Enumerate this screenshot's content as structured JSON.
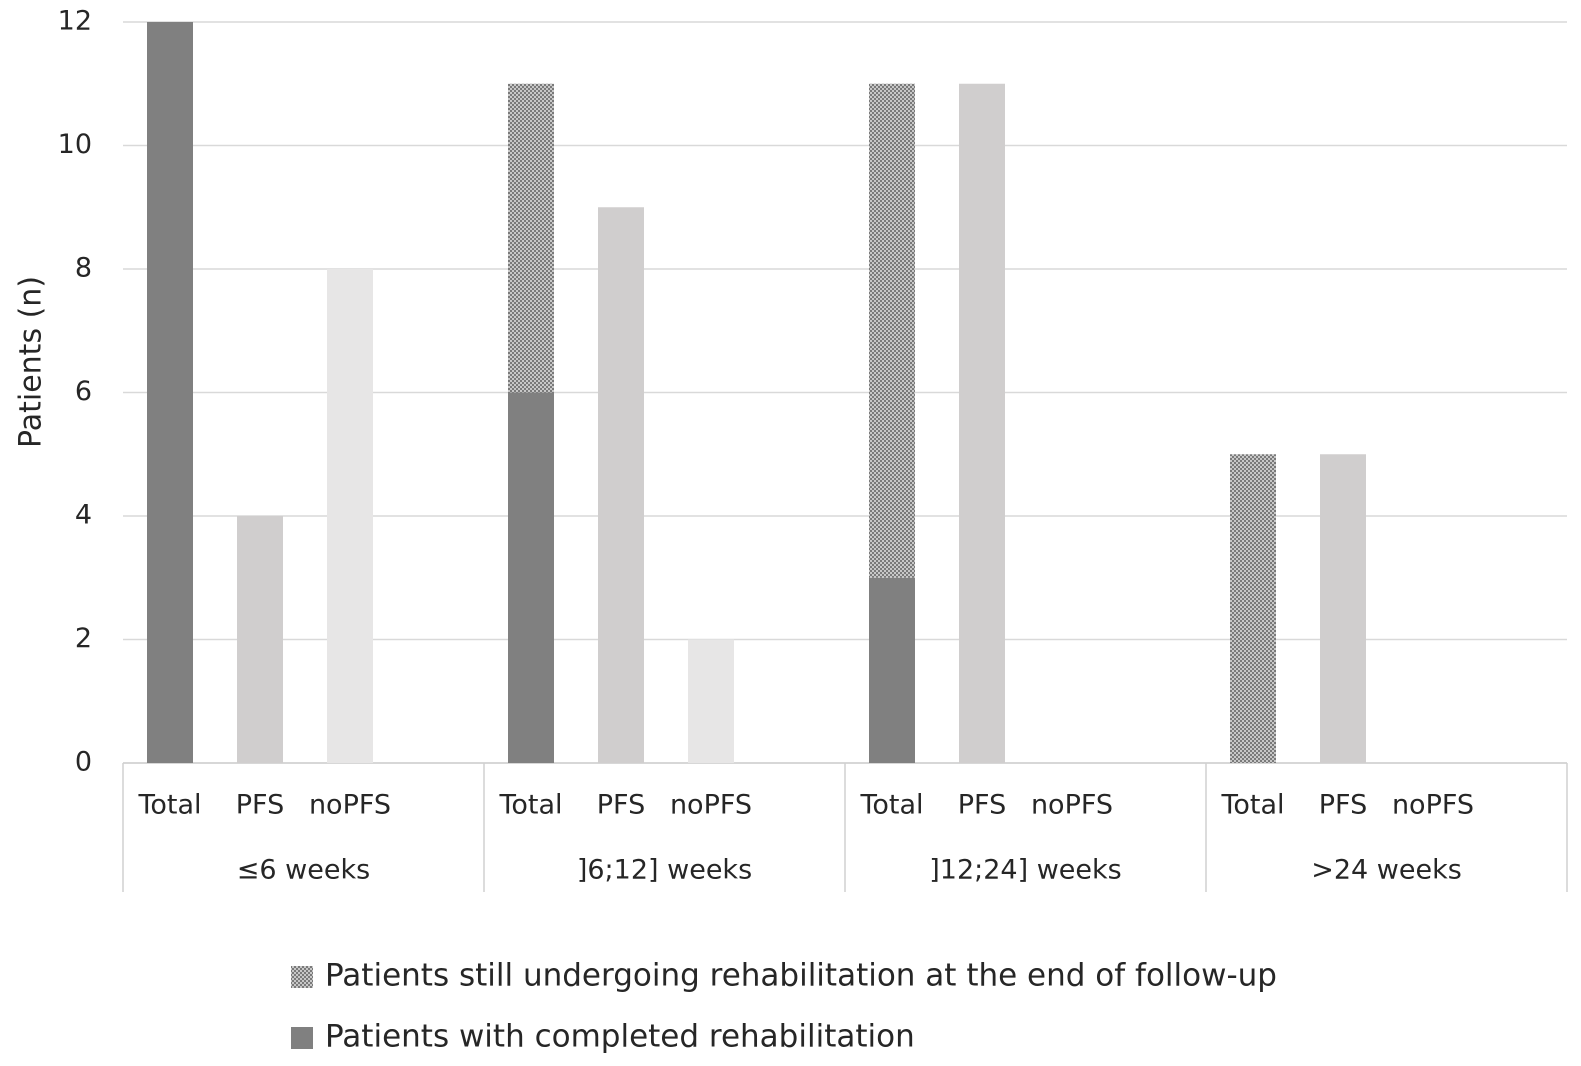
{
  "chart_data": {
    "type": "bar",
    "stacked": true,
    "y_label": "Patients (n)",
    "categories": [
      "Total",
      "PFS",
      "noPFS",
      "Total",
      "PFS",
      "noPFS",
      "Total",
      "PFS",
      "noPFS",
      "Total",
      "PFS",
      "noPFS"
    ],
    "groups": [
      "≤6 weeks",
      "]6;12] weeks",
      "]12;24] weeks",
      ">24 weeks"
    ],
    "series": [
      {
        "name": "Patients with completed rehabilitation",
        "color": "#808080",
        "values": [
          12,
          null,
          null,
          6,
          null,
          null,
          3,
          null,
          null,
          0,
          null,
          null
        ]
      },
      {
        "name": "Patients still undergoing rehabilitation at the end of follow-up",
        "color": "#7a7a7a",
        "pattern": "dots",
        "values": [
          0,
          null,
          null,
          5,
          null,
          null,
          8,
          null,
          null,
          5,
          null,
          null
        ]
      },
      {
        "color": "#d0cece",
        "values": [
          null,
          4,
          null,
          null,
          9,
          null,
          null,
          11,
          null,
          null,
          5,
          null
        ]
      },
      {
        "color": "#e7e6e6",
        "values": [
          null,
          null,
          8,
          null,
          null,
          2,
          null,
          null,
          0,
          null,
          null,
          0
        ]
      }
    ],
    "ylim": [
      0,
      12
    ],
    "yticks": [
      0,
      2,
      4,
      6,
      8,
      10,
      12
    ],
    "grid": true
  }
}
